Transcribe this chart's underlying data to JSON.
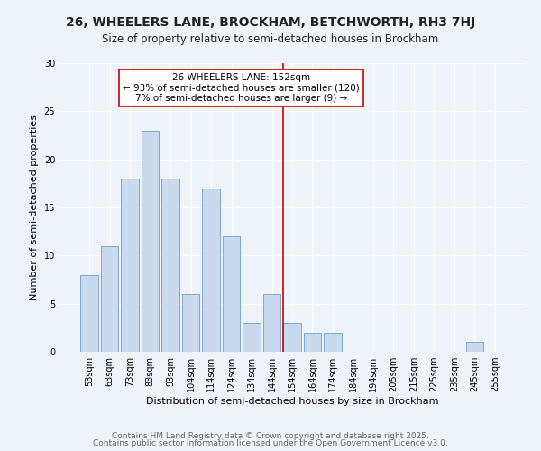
{
  "title": "26, WHEELERS LANE, BROCKHAM, BETCHWORTH, RH3 7HJ",
  "subtitle": "Size of property relative to semi-detached houses in Brockham",
  "xlabel": "Distribution of semi-detached houses by size in Brockham",
  "ylabel": "Number of semi-detached properties",
  "bar_labels": [
    "53sqm",
    "63sqm",
    "73sqm",
    "83sqm",
    "93sqm",
    "104sqm",
    "114sqm",
    "124sqm",
    "134sqm",
    "144sqm",
    "154sqm",
    "164sqm",
    "174sqm",
    "184sqm",
    "194sqm",
    "205sqm",
    "215sqm",
    "225sqm",
    "235sqm",
    "245sqm",
    "255sqm"
  ],
  "bar_values": [
    8,
    11,
    18,
    23,
    18,
    6,
    17,
    12,
    3,
    6,
    3,
    2,
    2,
    0,
    0,
    0,
    0,
    0,
    0,
    1,
    0
  ],
  "bar_color": "#c9d9ee",
  "bar_edgecolor": "#7aaad0",
  "vline_index": 10,
  "vline_color": "#cc0000",
  "annotation_text": "26 WHEELERS LANE: 152sqm\n← 93% of semi-detached houses are smaller (120)\n7% of semi-detached houses are larger (9) →",
  "annotation_box_color": "#ffffff",
  "annotation_box_edgecolor": "#cc0000",
  "annotation_fontsize": 7.5,
  "ylim": [
    0,
    30
  ],
  "yticks": [
    0,
    5,
    10,
    15,
    20,
    25,
    30
  ],
  "footer1": "Contains HM Land Registry data © Crown copyright and database right 2025.",
  "footer2": "Contains public sector information licensed under the Open Government Licence v3.0.",
  "bg_color": "#eef2f9",
  "plot_bg_color": "#eef2f9",
  "grid_color": "#ffffff",
  "title_fontsize": 10,
  "subtitle_fontsize": 8.5,
  "xlabel_fontsize": 8,
  "ylabel_fontsize": 8,
  "tick_fontsize": 7,
  "footer_fontsize": 6.5
}
